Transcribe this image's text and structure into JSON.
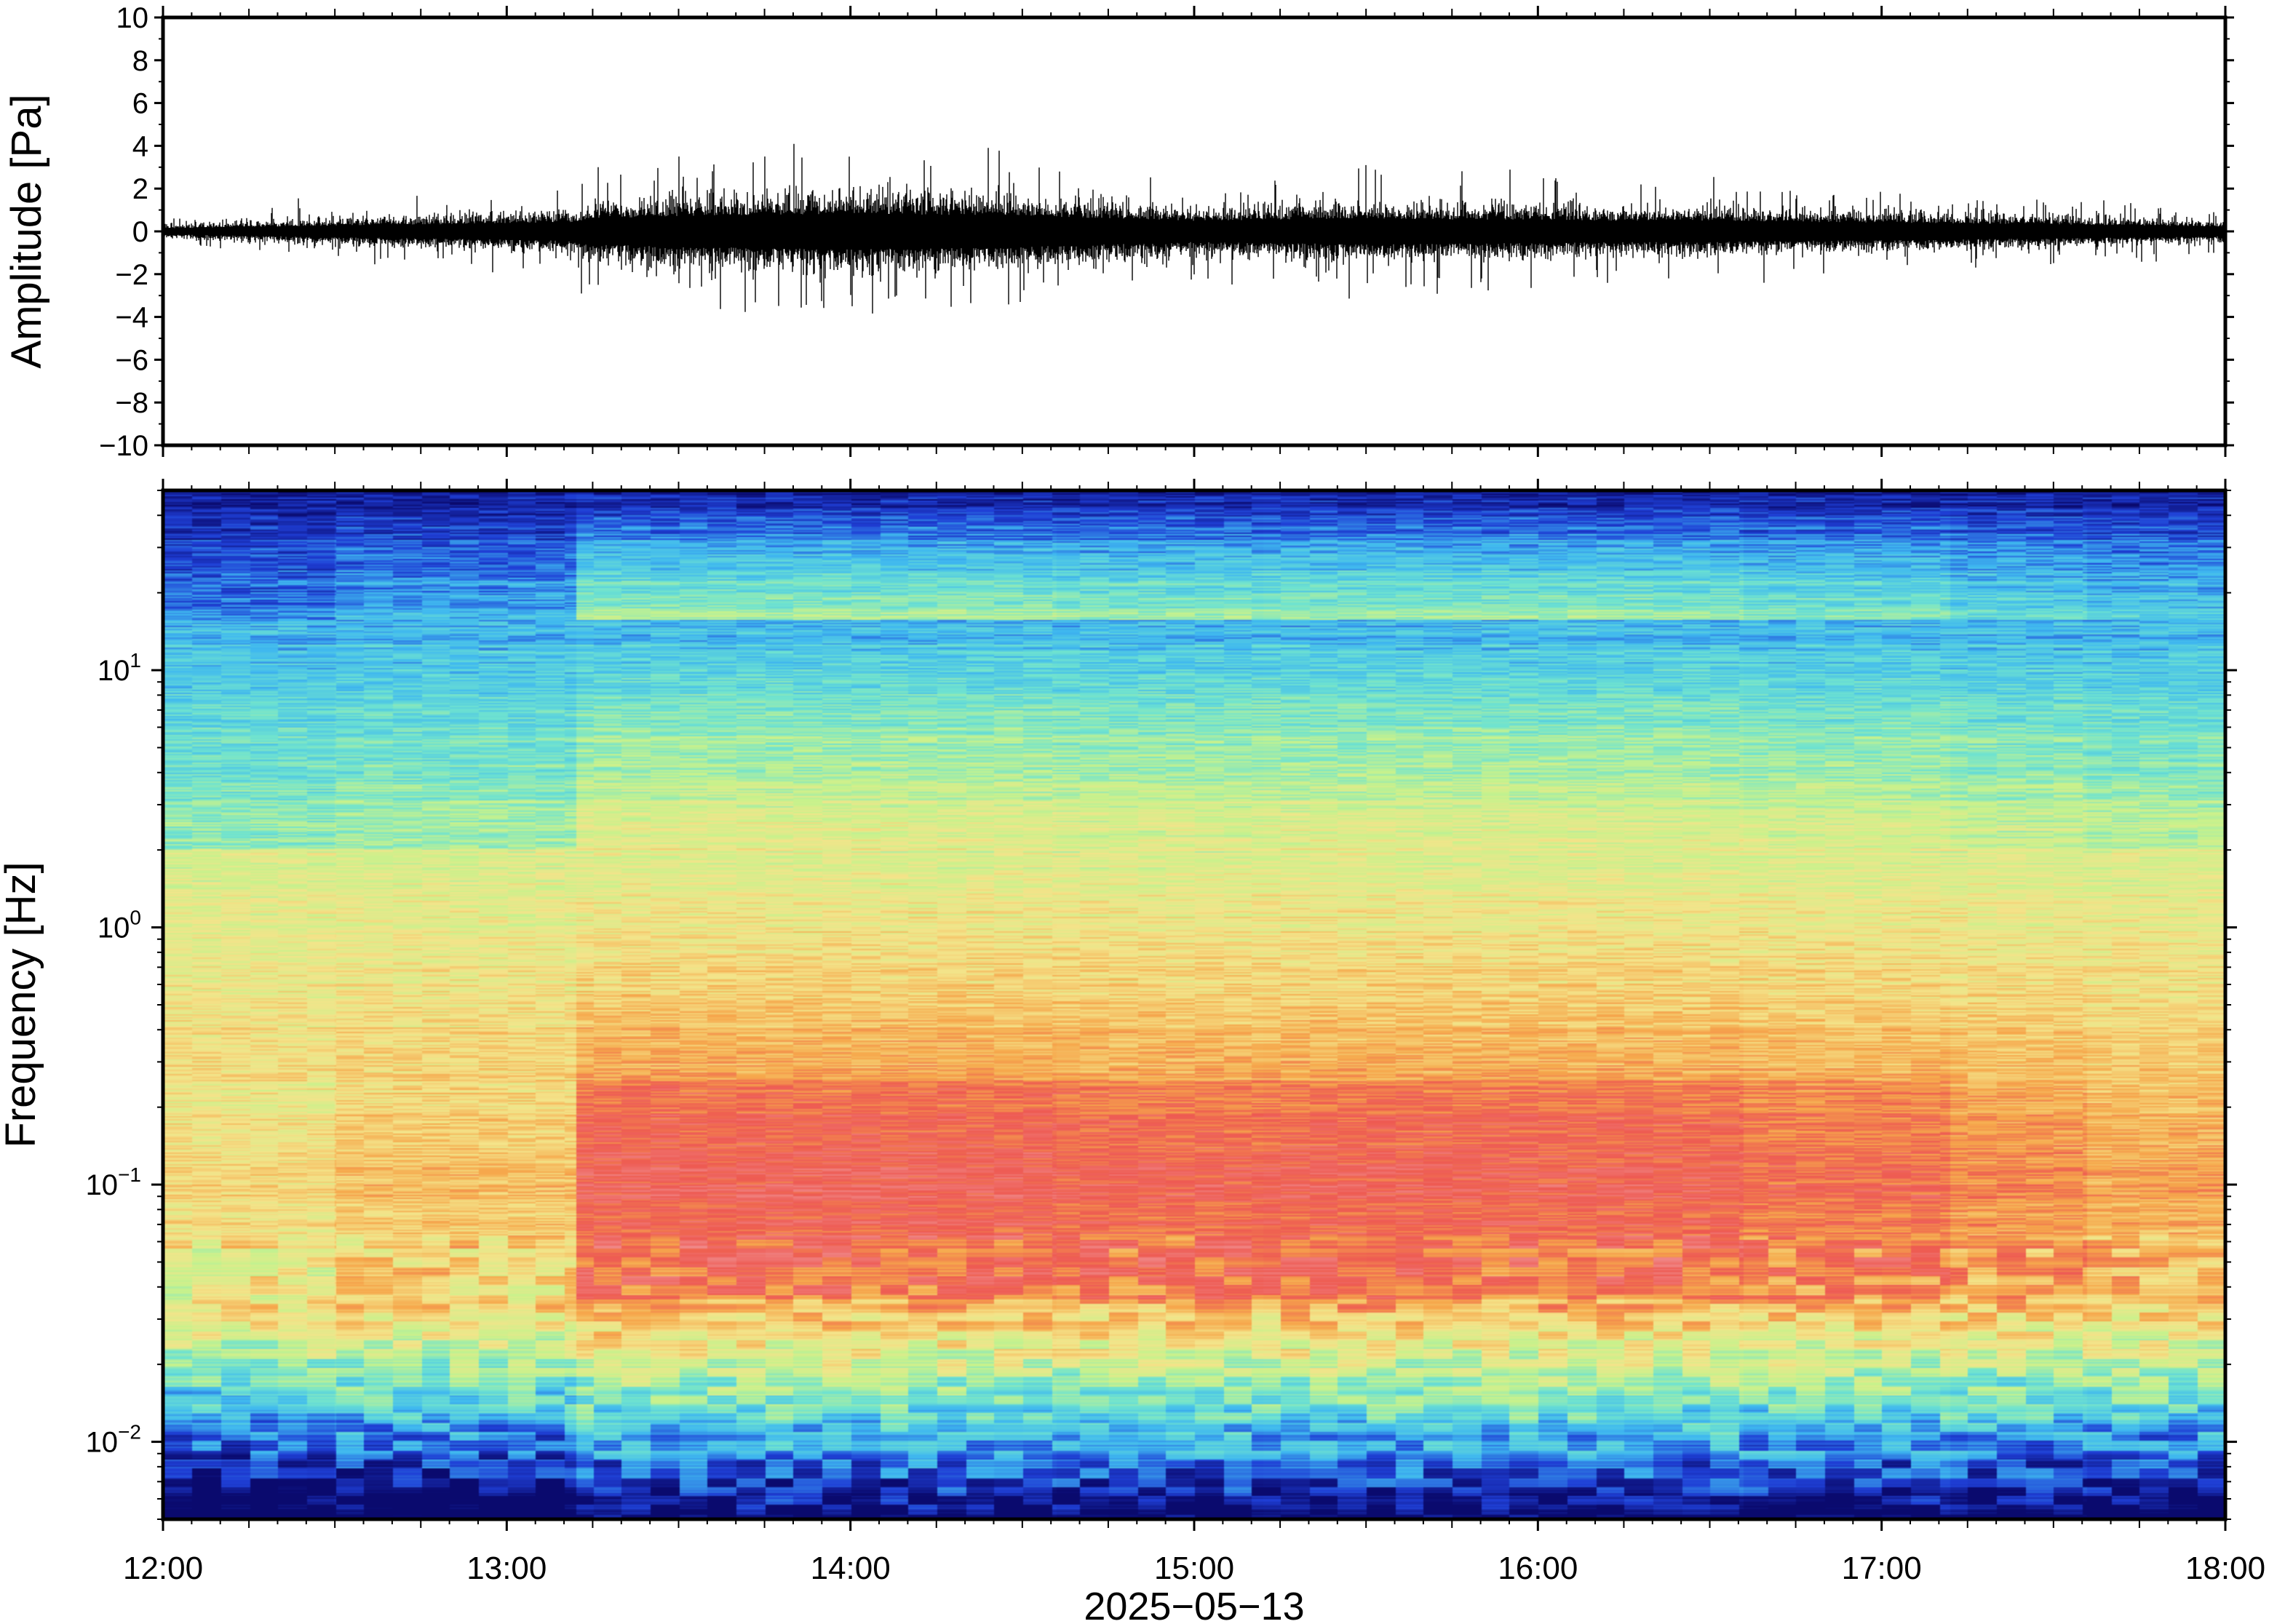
{
  "chart_data": [
    {
      "type": "line",
      "panel": "waveform",
      "ylabel": "Amplitude [Pa]",
      "ylim": [
        -10,
        10
      ],
      "yticks": [
        10,
        8,
        6,
        4,
        2,
        0,
        -2,
        -4,
        -6,
        -8,
        -10
      ],
      "ytick_labels": [
        "10",
        "8",
        "6",
        "4",
        "2",
        "0",
        "−2",
        "−4",
        "−6",
        "−8",
        "−10"
      ],
      "x_range": [
        "12:00",
        "18:00"
      ],
      "line_color": "#000000",
      "envelope": {
        "time_hours": [
          12.0,
          12.5,
          12.8,
          13.0,
          13.2,
          13.25,
          13.5,
          13.75,
          14.0,
          14.25,
          14.4,
          14.75,
          15.0,
          15.25,
          15.5,
          15.75,
          16.0,
          16.25,
          16.5,
          16.75,
          17.0,
          17.5,
          18.0
        ],
        "typical_half_range_pa": [
          0.25,
          0.5,
          0.6,
          0.7,
          0.8,
          1.1,
          1.3,
          1.4,
          1.5,
          1.4,
          1.4,
          1.1,
          0.9,
          1.0,
          1.1,
          1.0,
          1.0,
          0.9,
          0.9,
          0.8,
          0.75,
          0.6,
          0.4
        ]
      },
      "notable_peaks": [
        {
          "time": "13:16",
          "value": 3.0
        },
        {
          "time": "13:16",
          "value": -2.5
        },
        {
          "time": "13:30",
          "value": 3.5
        },
        {
          "time": "13:45",
          "value": 3.5
        },
        {
          "time": "14:08",
          "value": -3.0
        },
        {
          "time": "14:24",
          "value": 3.9
        },
        {
          "time": "15:30",
          "value": 3.1
        },
        {
          "time": "15:37",
          "value": -2.6
        }
      ]
    },
    {
      "type": "heatmap",
      "panel": "spectrogram",
      "ylabel": "Frequency [Hz]",
      "y_scale": "log",
      "ylim": [
        0.005,
        50
      ],
      "yticks": [
        0.01,
        0.1,
        1,
        10
      ],
      "ytick_labels": [
        {
          "base": "10",
          "exp": "−2"
        },
        {
          "base": "10",
          "exp": "−1"
        },
        {
          "base": "10",
          "exp": "0"
        },
        {
          "base": "10",
          "exp": "1"
        }
      ],
      "xlabel": "2025−05−13",
      "x_range_hours": [
        12,
        18
      ],
      "xticks_hours": [
        12,
        13,
        14,
        15,
        16,
        17,
        18
      ],
      "xtick_labels": [
        "12:00",
        "13:00",
        "14:00",
        "15:00",
        "16:00",
        "17:00",
        "18:00"
      ],
      "colormap": [
        "#0a0a6e",
        "#1f3fd6",
        "#3fb8f0",
        "#6fe3d0",
        "#c8f28c",
        "#f4e48a",
        "#f6a84c",
        "#ee5a52",
        "#f08a8a"
      ],
      "pattern": "energy peaks in red near 0.05–0.3 Hz between 13:15 and 17:00; blue near 10–50 Hz; cyan/green below 0.02 Hz"
    }
  ]
}
